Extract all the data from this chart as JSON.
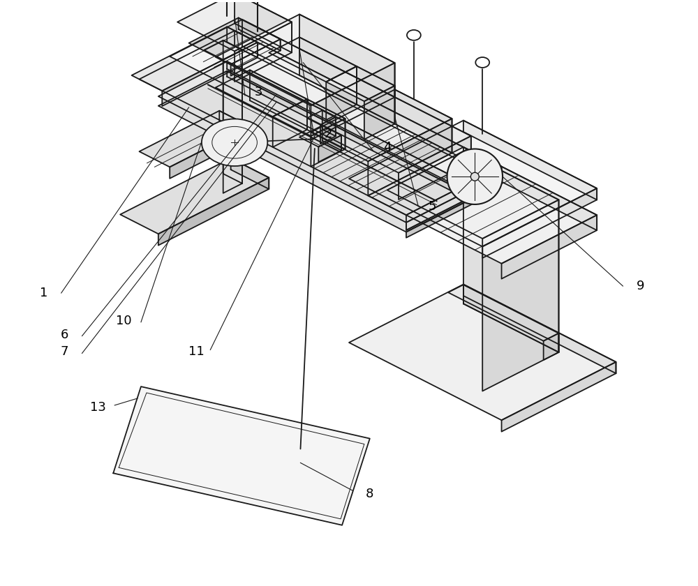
{
  "bg_color": "#ffffff",
  "line_color": "#1a1a1a",
  "lw_main": 1.3,
  "lw_thin": 0.7,
  "fig_width": 10.0,
  "fig_height": 8.4
}
